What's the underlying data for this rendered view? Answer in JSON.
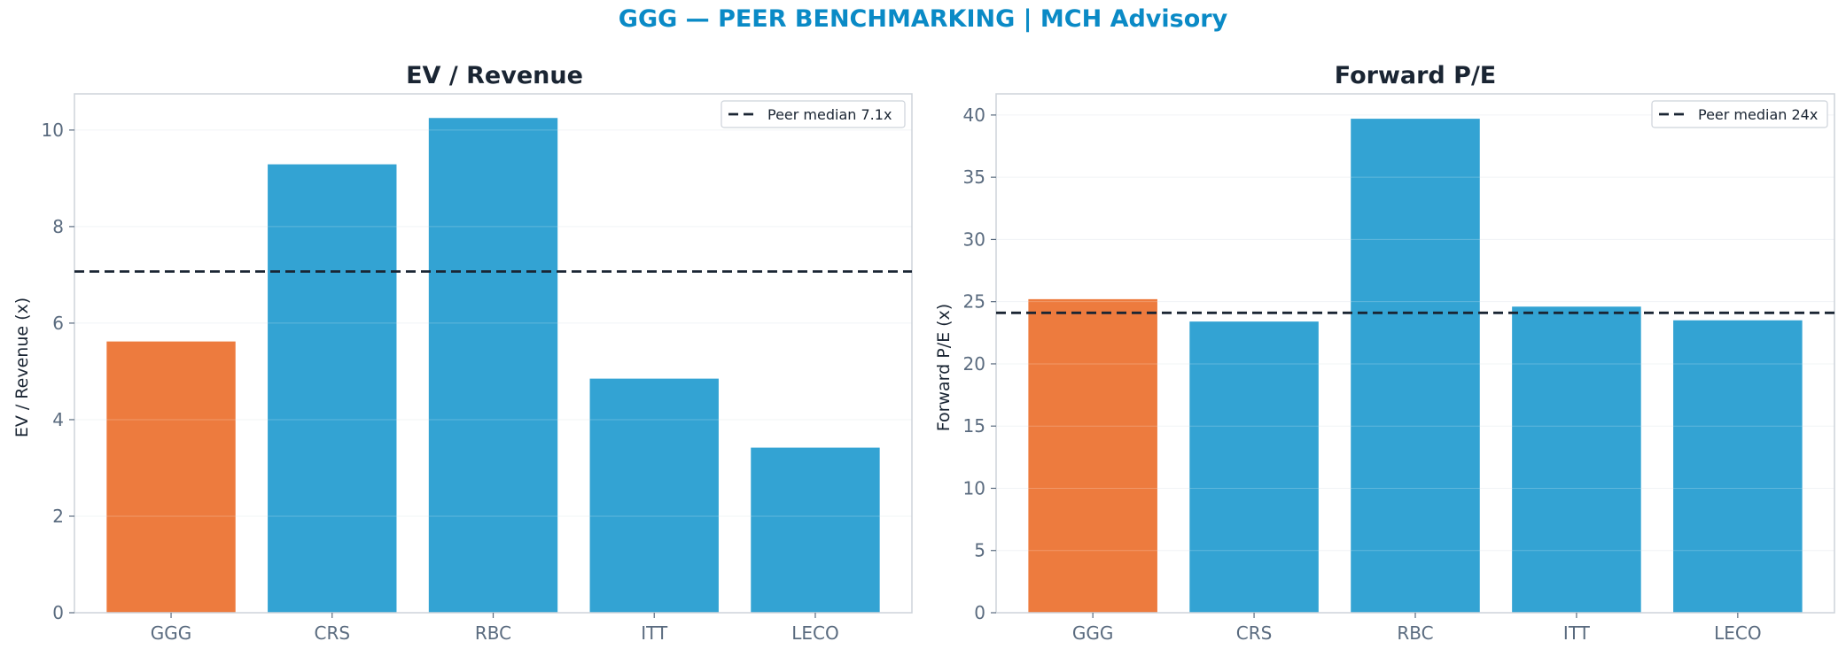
{
  "suptitle": "GGG — PEER BENCHMARKING | MCH Advisory",
  "colors": {
    "highlight": "#ed7b3e",
    "peer": "#33a3d3",
    "median_line": "#1a2533",
    "title": "#1a2533",
    "tick": "#5a6b7f",
    "spine": "#cdd3da",
    "grid": "#eef1f4"
  },
  "chart_data": [
    {
      "type": "bar",
      "title": "EV / Revenue",
      "xlabel": "",
      "ylabel": "EV / Revenue (x)",
      "categories": [
        "GGG",
        "CRS",
        "RBC",
        "ITT",
        "LECO"
      ],
      "values": [
        5.62,
        9.29,
        10.25,
        4.85,
        3.42
      ],
      "highlight_category": "GGG",
      "reference_line": {
        "value": 7.07,
        "label": "Peer median 7.1x",
        "style": "dashed"
      },
      "ylim": [
        0,
        10.75
      ],
      "yticks": [
        0,
        2,
        4,
        6,
        8,
        10
      ],
      "grid": true,
      "legend_position": "top-right"
    },
    {
      "type": "bar",
      "title": "Forward P/E",
      "xlabel": "",
      "ylabel": "Forward P/E (x)",
      "categories": [
        "GGG",
        "CRS",
        "RBC",
        "ITT",
        "LECO"
      ],
      "values": [
        25.2,
        23.4,
        39.7,
        24.6,
        23.5
      ],
      "highlight_category": "GGG",
      "reference_line": {
        "value": 24.1,
        "label": "Peer median 24x",
        "style": "dashed"
      },
      "ylim": [
        0,
        41.7
      ],
      "yticks": [
        0,
        5,
        10,
        15,
        20,
        25,
        30,
        35,
        40
      ],
      "grid": true,
      "legend_position": "top-right"
    }
  ]
}
